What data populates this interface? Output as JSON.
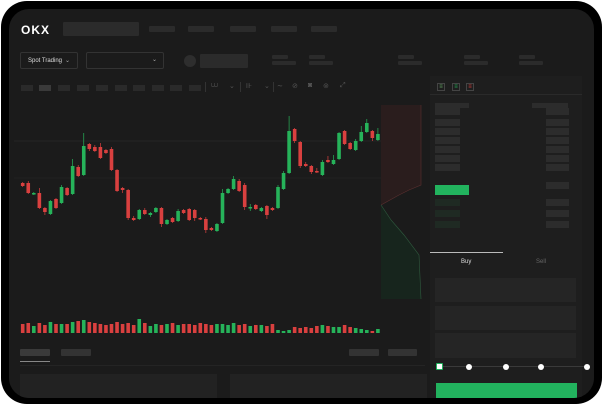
{
  "header": {
    "logo": "OKX"
  },
  "toolbar": {
    "market_select": "Spot Trading",
    "pair_chevron": "⌄"
  },
  "orderbook": {
    "view_icons": [
      "orderbook-both-icon",
      "orderbook-bids-icon",
      "orderbook-asks-icon"
    ]
  },
  "trade": {
    "tabs": [
      "Buy",
      "Sell"
    ],
    "active_tab": "Buy",
    "slider_percent": 0
  },
  "colors": {
    "up": "#26b35a",
    "down": "#d9403f",
    "background": "#1b1b1b",
    "buy_button": "#22b35e"
  },
  "chart_data": {
    "type": "candlestick",
    "candles_ohlc": [
      [
        68,
        65,
        69,
        64
      ],
      [
        68,
        58,
        70,
        57
      ],
      [
        57,
        58,
        59,
        56
      ],
      [
        58,
        43,
        63,
        42
      ],
      [
        43,
        39,
        44,
        36
      ],
      [
        37,
        50,
        51,
        36
      ],
      [
        52,
        43,
        53,
        42
      ],
      [
        48,
        64,
        66,
        47
      ],
      [
        63,
        56,
        64,
        55
      ],
      [
        57,
        85,
        92,
        56
      ],
      [
        84,
        75,
        86,
        74
      ],
      [
        76,
        105,
        118,
        75
      ],
      [
        107,
        102,
        108,
        100
      ],
      [
        104,
        100,
        106,
        99
      ],
      [
        104,
        93,
        108,
        92
      ],
      [
        101,
        98,
        102,
        97
      ],
      [
        102,
        81,
        104,
        80
      ],
      [
        81,
        60,
        82,
        59
      ],
      [
        63,
        61,
        64,
        58
      ],
      [
        61,
        33,
        62,
        31
      ],
      [
        33,
        31,
        35,
        30
      ],
      [
        32,
        41,
        42,
        31
      ],
      [
        41,
        37,
        43,
        36
      ],
      [
        36,
        38,
        39,
        34
      ],
      [
        39,
        43,
        44,
        38
      ],
      [
        43,
        27,
        44,
        24
      ],
      [
        27,
        31,
        32,
        26
      ],
      [
        33,
        29,
        34,
        28
      ],
      [
        30,
        40,
        42,
        29
      ],
      [
        41,
        38,
        42,
        37
      ],
      [
        42,
        31,
        43,
        30
      ],
      [
        41,
        33,
        42,
        30
      ],
      [
        33,
        32,
        34,
        31
      ],
      [
        32,
        21,
        34,
        18
      ],
      [
        23,
        21,
        24,
        20
      ],
      [
        20,
        27,
        28,
        19
      ],
      [
        28,
        58,
        62,
        27
      ],
      [
        58,
        62,
        63,
        57
      ],
      [
        62,
        72,
        75,
        61
      ],
      [
        70,
        60,
        72,
        59
      ],
      [
        66,
        44,
        68,
        41
      ],
      [
        43,
        44,
        47,
        40
      ],
      [
        46,
        42,
        47,
        41
      ],
      [
        40,
        43,
        44,
        39
      ],
      [
        45,
        36,
        46,
        32
      ],
      [
        43,
        41,
        44,
        40
      ],
      [
        43,
        64,
        66,
        42
      ],
      [
        62,
        78,
        80,
        61
      ],
      [
        78,
        120,
        135,
        77
      ],
      [
        122,
        110,
        123,
        108
      ],
      [
        109,
        85,
        110,
        83
      ],
      [
        87,
        85,
        89,
        84
      ],
      [
        85,
        79,
        86,
        77
      ],
      [
        80,
        79,
        83,
        78
      ],
      [
        76,
        89,
        91,
        75
      ],
      [
        91,
        89,
        95,
        88
      ],
      [
        87,
        91,
        96,
        86
      ],
      [
        92,
        118,
        119,
        91
      ],
      [
        120,
        107,
        121,
        106
      ],
      [
        108,
        102,
        109,
        101
      ],
      [
        101,
        110,
        112,
        100
      ],
      [
        110,
        119,
        125,
        109
      ],
      [
        119,
        128,
        132,
        118
      ],
      [
        120,
        113,
        121,
        110
      ],
      [
        111,
        117,
        123,
        110
      ]
    ],
    "volume": [
      9,
      10,
      7,
      10,
      8,
      11,
      9,
      9,
      9,
      11,
      12,
      13,
      11,
      10,
      9,
      8,
      9,
      11,
      9,
      10,
      8,
      14,
      10,
      7,
      9,
      8,
      9,
      10,
      8,
      9,
      9,
      8,
      10,
      9,
      8,
      9,
      9,
      8,
      10,
      8,
      9,
      7,
      8,
      8,
      7,
      9,
      3,
      2,
      3,
      6,
      5,
      6,
      5,
      7,
      8,
      7,
      6,
      6,
      8,
      6,
      5,
      4,
      3,
      2,
      4
    ],
    "depth": {
      "asks_color": "#d9403f",
      "bids_color": "#26b35a"
    }
  }
}
